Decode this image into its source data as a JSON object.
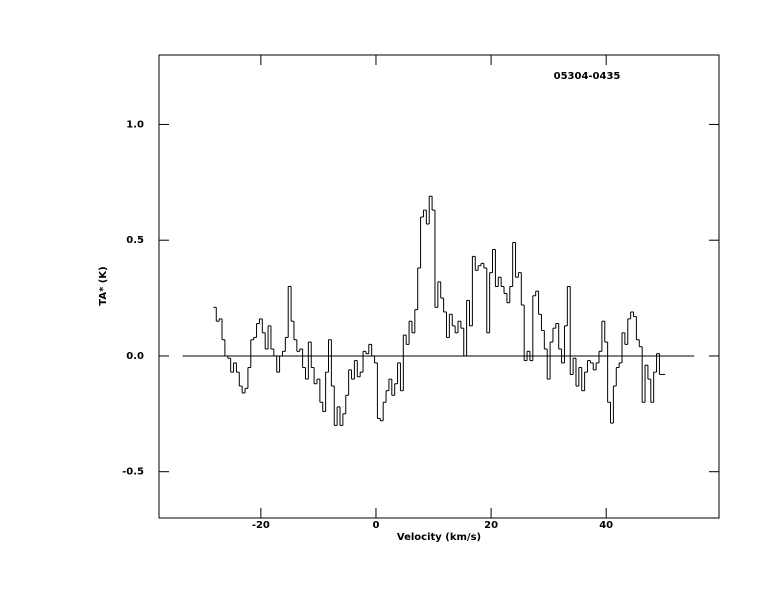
{
  "chart_data": {
    "type": "step",
    "title": "05304-0435",
    "x_label": "Velocity (km/s)",
    "y_label": "TA* (K)",
    "xlim": [
      -37.7,
      59.6
    ],
    "ylim": [
      -0.7,
      1.3
    ],
    "xticks": [
      -20,
      0,
      20,
      40
    ],
    "yticks": [
      -0.5,
      {
        "value": 0,
        "label": "0.0"
      },
      0.5,
      {
        "value": 1,
        "label": "1.0"
      }
    ],
    "color": "#000000",
    "zero_line": {
      "x": [
        -33.6,
        55.3
      ],
      "y": [
        0,
        0
      ]
    },
    "x": [
      -28,
      -27.5,
      -27,
      -26.5,
      -26,
      -25.5,
      -25,
      -24.5,
      -24,
      -23.5,
      -23,
      -22.5,
      -22,
      -21.5,
      -21,
      -20.5,
      -20,
      -19.5,
      -19,
      -18.5,
      -18,
      -17.5,
      -17,
      -16.5,
      -16,
      -15.5,
      -15,
      -14.5,
      -14,
      -13.5,
      -13,
      -12.5,
      -12,
      -11.5,
      -11,
      -10.5,
      -10,
      -9.5,
      -9,
      -8.5,
      -8,
      -7.5,
      -7,
      -6.5,
      -6,
      -5.5,
      -5,
      -4.5,
      -4,
      -3.5,
      -3,
      -2.5,
      -2,
      -1.5,
      -1,
      -0.5,
      0,
      0.5,
      1,
      1.5,
      2,
      2.5,
      3,
      3.5,
      4,
      4.5,
      5,
      5.5,
      6,
      6.5,
      7,
      7.5,
      8,
      8.5,
      9,
      9.5,
      10,
      10.5,
      11,
      11.5,
      12,
      12.5,
      13,
      13.5,
      14,
      14.5,
      15,
      15.5,
      16,
      16.5,
      17,
      17.5,
      18,
      18.5,
      19,
      19.5,
      20,
      20.5,
      21,
      21.5,
      22,
      22.5,
      23,
      23.5,
      24,
      24.5,
      25,
      25.5,
      26,
      26.5,
      27,
      27.5,
      28,
      28.5,
      29,
      29.5,
      30,
      30.5,
      31,
      31.5,
      32,
      32.5,
      33,
      33.5,
      34,
      34.5,
      35,
      35.5,
      36,
      36.5,
      37,
      37.5,
      38,
      38.5,
      39,
      39.5,
      40,
      40.5,
      41,
      41.5,
      42,
      42.5,
      43,
      43.5,
      44,
      44.5,
      45,
      45.5,
      46,
      46.5,
      47,
      47.5,
      48,
      48.5,
      49,
      49.5,
      50
    ],
    "values": [
      0.21,
      0.15,
      0.16,
      0.07,
      0.0,
      -0.01,
      -0.07,
      -0.03,
      -0.07,
      -0.13,
      -0.16,
      -0.14,
      -0.05,
      0.07,
      0.08,
      0.14,
      0.16,
      0.1,
      0.03,
      0.13,
      0.03,
      0.0,
      -0.07,
      0.0,
      0.02,
      0.08,
      0.3,
      0.15,
      0.07,
      0.02,
      0.03,
      -0.05,
      -0.1,
      0.06,
      -0.05,
      -0.12,
      -0.1,
      -0.2,
      -0.24,
      -0.07,
      0.07,
      -0.13,
      -0.3,
      -0.22,
      -0.3,
      -0.25,
      -0.17,
      -0.06,
      -0.1,
      -0.02,
      -0.09,
      -0.07,
      0.02,
      0.01,
      0.05,
      0.0,
      -0.03,
      -0.27,
      -0.28,
      -0.2,
      -0.15,
      -0.1,
      -0.17,
      -0.12,
      -0.03,
      -0.15,
      0.09,
      0.05,
      0.15,
      0.1,
      0.2,
      0.38,
      0.6,
      0.63,
      0.57,
      0.69,
      0.63,
      0.21,
      0.32,
      0.25,
      0.19,
      0.08,
      0.18,
      0.13,
      0.1,
      0.15,
      0.12,
      0.0,
      0.24,
      0.13,
      0.43,
      0.37,
      0.39,
      0.4,
      0.38,
      0.1,
      0.36,
      0.46,
      0.3,
      0.34,
      0.3,
      0.27,
      0.23,
      0.3,
      0.49,
      0.34,
      0.36,
      0.22,
      -0.02,
      0.02,
      -0.02,
      0.26,
      0.28,
      0.18,
      0.11,
      0.03,
      -0.1,
      0.06,
      0.12,
      0.14,
      0.03,
      -0.03,
      0.13,
      0.3,
      -0.08,
      -0.01,
      -0.13,
      -0.05,
      -0.15,
      -0.07,
      -0.02,
      -0.03,
      -0.06,
      -0.03,
      0.02,
      0.15,
      0.06,
      -0.2,
      -0.29,
      -0.13,
      -0.05,
      -0.03,
      0.1,
      0.05,
      0.16,
      0.19,
      0.17,
      0.07,
      0.04,
      -0.2,
      -0.04,
      -0.1,
      -0.2,
      -0.07,
      0.01,
      -0.08,
      -0.08
    ]
  }
}
